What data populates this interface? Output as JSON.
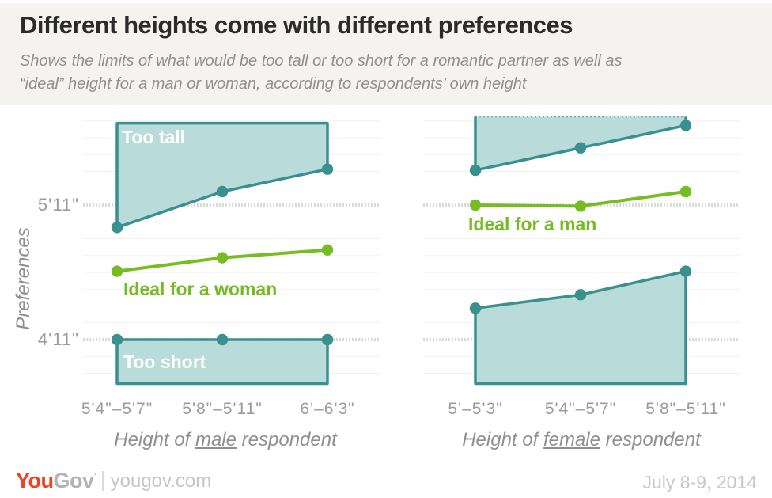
{
  "header": {
    "title": "Different heights come with different preferences",
    "subtitle_line1": "Shows the limits of what would be too tall or too short for a romantic partner as well as",
    "subtitle_line2": "“ideal” height for a man or woman, according to respondents’ own height"
  },
  "chart_data": {
    "type": "area",
    "title": "Different heights come with different preferences",
    "y_axis": {
      "label": "Preferences",
      "ticks": [
        {
          "label": "5'11\"",
          "inches": 71
        },
        {
          "label": "4'11\"",
          "inches": 59
        }
      ]
    },
    "colors": {
      "area_fill": "#b9dbda",
      "area_stroke": "#38918f",
      "line_green": "#76bd22"
    },
    "panels": [
      {
        "id": "male-respondents",
        "x_title_prefix": "Height of ",
        "x_title_emph": "male",
        "x_title_suffix": " respondent",
        "categories": [
          "5'4\"–5'7\"",
          "5'8\"–5'11\"",
          "6'–6'3\""
        ],
        "series": [
          {
            "id": "too-tall",
            "name": "Too tall",
            "label": "Too tall",
            "type": "area-above",
            "values_inches": [
              69.0,
              72.2,
              74.2
            ],
            "area_top_inches": 78.3
          },
          {
            "id": "ideal",
            "name": "Ideal for a woman",
            "label": "Ideal for a woman",
            "type": "line",
            "values_inches": [
              65.1,
              66.3,
              67.0
            ]
          },
          {
            "id": "too-short",
            "name": "Too short",
            "label": "Too short",
            "type": "area-below",
            "values_inches": [
              59.0,
              59.0,
              59.0
            ]
          }
        ]
      },
      {
        "id": "female-respondents",
        "x_title_prefix": "Height of ",
        "x_title_emph": "female",
        "x_title_suffix": " respondent",
        "categories": [
          "5'–5'3\"",
          "5'4\"–5'7\"",
          "5'8\"–5'11\""
        ],
        "series": [
          {
            "id": "too-tall",
            "name": "Too tall",
            "label": "",
            "type": "area-above",
            "values_inches": [
              74.1,
              76.1,
              78.1
            ],
            "area_top_inches": null
          },
          {
            "id": "ideal",
            "name": "Ideal for a man",
            "label": "Ideal for a man",
            "type": "line",
            "values_inches": [
              71.0,
              70.9,
              72.2
            ]
          },
          {
            "id": "too-short",
            "name": "Too short",
            "label": "",
            "type": "area-below",
            "values_inches": [
              61.8,
              63.0,
              65.1
            ]
          }
        ]
      }
    ]
  },
  "footer": {
    "logo_you": "You",
    "logo_gov": "Gov",
    "logo_mark": "’",
    "site": "yougov.com",
    "date": "July 8-9, 2014"
  }
}
